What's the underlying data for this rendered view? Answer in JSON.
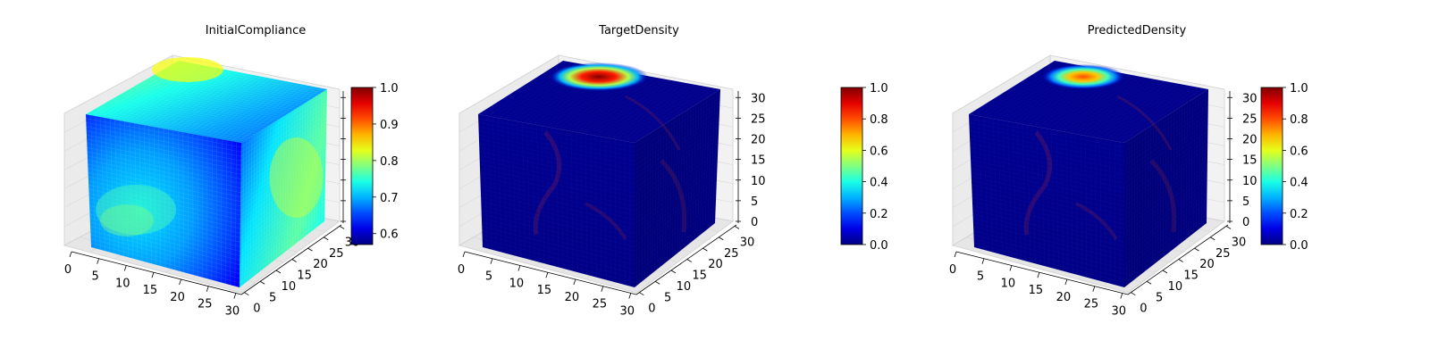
{
  "chart_data": [
    {
      "type": "voxel3d",
      "title": "InitialCompliance",
      "axes": {
        "x_ticks": [
          0,
          5,
          10,
          15,
          20,
          25,
          30
        ],
        "y_ticks": [
          0,
          5,
          10,
          15,
          20,
          25,
          30
        ],
        "z_ticks": [],
        "grid": true
      },
      "colormap": "jet",
      "colorbar": {
        "min": 0.57,
        "max": 1.0,
        "ticks": [
          0.6,
          0.7,
          0.8,
          0.9,
          1.0
        ],
        "labels": [
          "0.6",
          "0.7",
          "0.8",
          "0.9",
          "1.0"
        ]
      },
      "field_description": {
        "top_face": "yellow-green high near back-left, green elsewhere",
        "front_face": "cyan-green blobs on blue",
        "right_face": "olive/yellow-green with blue regions"
      }
    },
    {
      "type": "voxel3d",
      "title": "TargetDensity",
      "axes": {
        "x_ticks": [
          0,
          5,
          10,
          15,
          20,
          25,
          30
        ],
        "y_ticks": [
          0,
          5,
          10,
          15,
          20,
          25,
          30
        ],
        "z_ticks": [
          0,
          5,
          10,
          15,
          20,
          25,
          30
        ],
        "grid": true
      },
      "colormap": "jet",
      "colorbar": {
        "min": 0.0,
        "max": 1.0,
        "ticks": [
          0.0,
          0.2,
          0.4,
          0.6,
          0.8,
          1.0
        ],
        "labels": [
          "0.0",
          "0.2",
          "0.4",
          "0.6",
          "0.8",
          "1.0"
        ]
      },
      "field_description": {
        "top_face": "dark-red peak near back-left corner, rest ~0",
        "front_face": "~0 with faint internal structure",
        "right_face": "~0 with faint internal structure"
      },
      "hotspot_value": 1.0
    },
    {
      "type": "voxel3d",
      "title": "PredictedDensity",
      "axes": {
        "x_ticks": [
          0,
          5,
          10,
          15,
          20,
          25,
          30
        ],
        "y_ticks": [
          0,
          5,
          10,
          15,
          20,
          25,
          30
        ],
        "z_ticks": [
          0,
          5,
          10,
          15,
          20,
          25,
          30
        ],
        "grid": true
      },
      "colormap": "jet",
      "colorbar": {
        "min": 0.0,
        "max": 1.0,
        "ticks": [
          0.0,
          0.2,
          0.4,
          0.6,
          0.8,
          1.0
        ],
        "labels": [
          "0.0",
          "0.2",
          "0.4",
          "0.6",
          "0.8",
          "1.0"
        ]
      },
      "field_description": {
        "top_face": "orange-red peak near back-left corner, rest ~0",
        "front_face": "~0 with faint internal structure",
        "right_face": "~0 with faint internal structure"
      },
      "hotspot_value": 0.8
    }
  ]
}
